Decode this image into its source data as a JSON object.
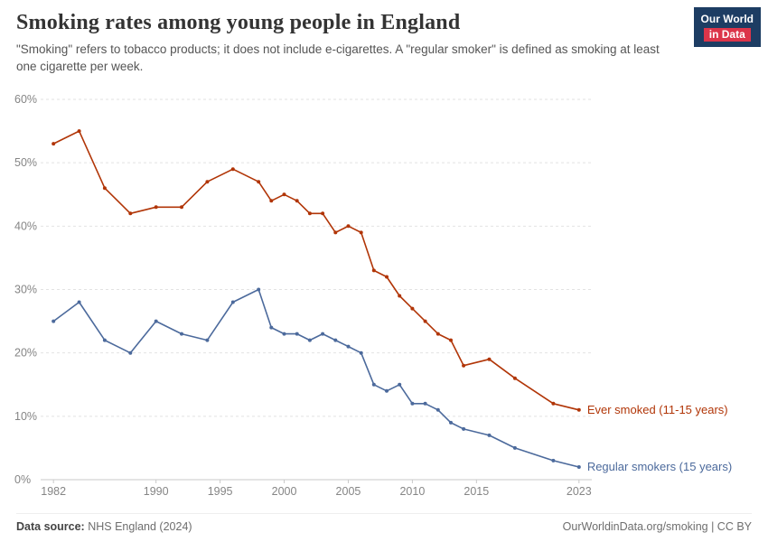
{
  "header": {
    "title": "Smoking rates among young people in England",
    "subtitle": "\"Smoking\" refers to tobacco products; it does not include e-cigarettes. A \"regular smoker\" is defined as smoking at least one cigarette per week.",
    "logo": {
      "line1": "Our World",
      "line2": "in Data",
      "bg_color": "#1d3d63",
      "accent_color": "#dc354a"
    }
  },
  "chart_data": {
    "type": "line",
    "title": "Smoking rates among young people in England",
    "xlabel": "",
    "ylabel": "",
    "ylim": [
      0,
      60
    ],
    "xlim": [
      1981,
      2024
    ],
    "y_ticks": [
      0,
      10,
      20,
      30,
      40,
      50,
      60
    ],
    "y_tick_suffix": "%",
    "x_ticks": [
      1982,
      1990,
      1995,
      2000,
      2005,
      2010,
      2015,
      2023
    ],
    "grid": "horizontal-dashed",
    "legend": "end-of-line-labels",
    "x": [
      1982,
      1984,
      1986,
      1988,
      1990,
      1992,
      1994,
      1996,
      1998,
      1999,
      2000,
      2001,
      2002,
      2003,
      2004,
      2005,
      2006,
      2007,
      2008,
      2009,
      2010,
      2011,
      2012,
      2013,
      2014,
      2016,
      2018,
      2021,
      2023
    ],
    "series": [
      {
        "name": "Ever smoked (11-15 years)",
        "color": "#b13507",
        "values": [
          53,
          55,
          46,
          42,
          43,
          43,
          47,
          49,
          47,
          44,
          45,
          44,
          42,
          42,
          39,
          40,
          39,
          33,
          32,
          29,
          27,
          25,
          23,
          22,
          18,
          19,
          16,
          12,
          11
        ]
      },
      {
        "name": "Regular smokers (15 years)",
        "color": "#4c6a9c",
        "values": [
          25,
          28,
          22,
          20,
          25,
          23,
          22,
          28,
          30,
          24,
          23,
          23,
          22,
          23,
          22,
          21,
          20,
          15,
          14,
          15,
          12,
          12,
          11,
          9,
          8,
          7,
          5,
          3,
          2
        ]
      }
    ]
  },
  "footer": {
    "source_label": "Data source:",
    "source_value": "NHS England (2024)",
    "credit": "OurWorldinData.org/smoking | CC BY"
  }
}
